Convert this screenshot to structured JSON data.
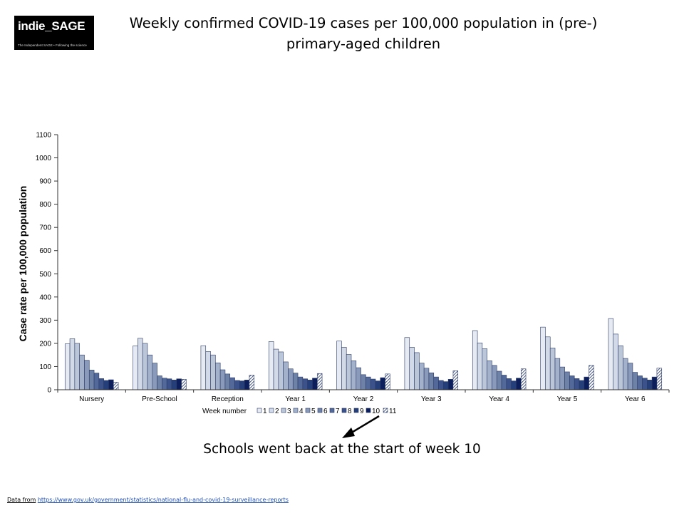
{
  "logo": {
    "name": "indie_SAGE",
    "tagline": "The Independent SAGE • Following the science"
  },
  "header": {
    "title_line1": "Weekly confirmed COVID-19 cases per 100,000 population in (pre-)",
    "title_line2": "primary-aged children"
  },
  "chart_data": {
    "type": "bar",
    "title": "Weekly confirmed COVID-19 cases per 100,000 population in (pre-) primary-aged children",
    "xlabel": "",
    "ylabel": "Case rate per 100,000 population",
    "ylim": [
      0,
      1100
    ],
    "yticks": [
      0,
      100,
      200,
      300,
      400,
      500,
      600,
      700,
      800,
      900,
      1000,
      1100
    ],
    "grid": false,
    "legend_position": "bottom-left",
    "legend_title": "Week number",
    "categories": [
      "Nursery",
      "Pre-School",
      "Reception",
      "Year 1",
      "Year 2",
      "Year 3",
      "Year 4",
      "Year 5",
      "Year 6"
    ],
    "series": [
      {
        "name": "1",
        "color": "#e6eaf2",
        "values": [
          198,
          189,
          190,
          208,
          210,
          225,
          255,
          270,
          307
        ]
      },
      {
        "name": "2",
        "color": "#d3dae7",
        "values": [
          220,
          222,
          165,
          175,
          183,
          183,
          202,
          228,
          240
        ]
      },
      {
        "name": "3",
        "color": "#bcc6d9",
        "values": [
          200,
          200,
          150,
          163,
          152,
          160,
          177,
          180,
          190
        ]
      },
      {
        "name": "4",
        "color": "#a4b1ca",
        "values": [
          150,
          150,
          116,
          120,
          125,
          115,
          125,
          135,
          135
        ]
      },
      {
        "name": "5",
        "color": "#8a9aba",
        "values": [
          127,
          115,
          86,
          90,
          95,
          93,
          105,
          98,
          115
        ]
      },
      {
        "name": "6",
        "color": "#6e82a8",
        "values": [
          85,
          60,
          68,
          72,
          65,
          73,
          80,
          77,
          75
        ]
      },
      {
        "name": "7",
        "color": "#53699a",
        "values": [
          72,
          50,
          52,
          55,
          55,
          55,
          63,
          60,
          60
        ]
      },
      {
        "name": "8",
        "color": "#3b528a",
        "values": [
          48,
          47,
          40,
          47,
          46,
          40,
          48,
          48,
          50
        ]
      },
      {
        "name": "9",
        "color": "#253f7a",
        "values": [
          40,
          42,
          38,
          42,
          38,
          35,
          38,
          40,
          42
        ]
      },
      {
        "name": "10",
        "color": "#0c1f5c",
        "values": [
          43,
          47,
          42,
          50,
          52,
          45,
          50,
          55,
          55
        ]
      },
      {
        "name": "11",
        "color": "#ffffff",
        "pattern": "hatch",
        "values": [
          32,
          45,
          63,
          70,
          68,
          82,
          90,
          105,
          93
        ]
      }
    ],
    "annotation": "Schools went back at the start of week 10"
  },
  "footer": {
    "source_label": "Data from",
    "source_url": "https://www.gov.uk/government/statistics/national-flu-and-covid-19-surveillance-reports"
  }
}
